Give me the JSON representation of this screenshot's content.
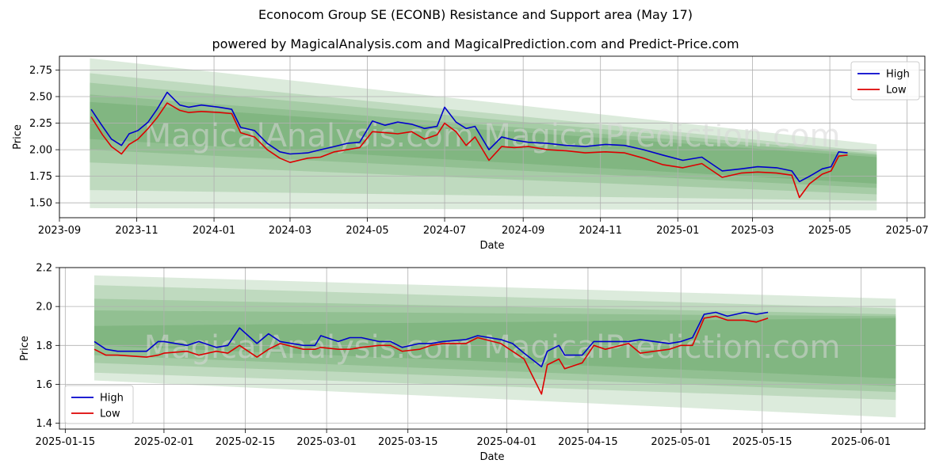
{
  "title": "Econocom Group SE (ECONB) Resistance and Support area (May 17)",
  "subtitle": "powered by MagicalAnalysis.com and MagicalPrediction.com and Predict-Price.com",
  "watermark": "MagicalAnalysis.com   MagicalPrediction.com",
  "colors": {
    "high": "#0000cc",
    "low": "#dd0000",
    "band": "#2e8b2e"
  },
  "chart_data": [
    {
      "type": "line",
      "xlabel": "Date",
      "ylabel": "Price",
      "xlim": [
        "2023-09-01",
        "2025-07-15"
      ],
      "ylim": [
        1.36,
        2.88
      ],
      "x_ticks": [
        "2023-09",
        "2023-11",
        "2024-01",
        "2024-03",
        "2024-05",
        "2024-07",
        "2024-09",
        "2024-11",
        "2025-01",
        "2025-03",
        "2025-05",
        "2025-07"
      ],
      "y_ticks": [
        1.5,
        1.75,
        2.0,
        2.25,
        2.5,
        2.75
      ],
      "grid": true,
      "legend": "top-right",
      "bands": [
        {
          "start": "2023-09-25",
          "end": "2025-06-07",
          "upper": [
            2.86,
            2.05
          ],
          "lower": [
            1.45,
            1.43
          ]
        },
        {
          "start": "2023-09-25",
          "end": "2025-06-07",
          "upper": [
            2.72,
            1.98
          ],
          "lower": [
            1.62,
            1.52
          ]
        },
        {
          "start": "2023-09-25",
          "end": "2025-06-07",
          "upper": [
            2.63,
            1.96
          ],
          "lower": [
            1.88,
            1.58
          ]
        },
        {
          "start": "2023-09-25",
          "end": "2025-06-07",
          "upper": [
            2.52,
            1.95
          ],
          "lower": [
            2.0,
            1.64
          ]
        },
        {
          "start": "2023-09-25",
          "end": "2025-06-07",
          "upper": [
            2.45,
            1.93
          ],
          "lower": [
            2.1,
            1.68
          ]
        }
      ],
      "series": [
        {
          "name": "High",
          "x": [
            "2023-09-26",
            "2023-10-05",
            "2023-10-12",
            "2023-10-20",
            "2023-10-26",
            "2023-11-02",
            "2023-11-10",
            "2023-11-17",
            "2023-11-25",
            "2023-12-05",
            "2023-12-12",
            "2023-12-22",
            "2024-01-05",
            "2024-01-15",
            "2024-01-22",
            "2024-02-02",
            "2024-02-12",
            "2024-02-22",
            "2024-03-01",
            "2024-03-15",
            "2024-03-25",
            "2024-04-05",
            "2024-04-15",
            "2024-04-25",
            "2024-05-05",
            "2024-05-15",
            "2024-05-25",
            "2024-06-05",
            "2024-06-15",
            "2024-06-25",
            "2024-07-01",
            "2024-07-10",
            "2024-07-18",
            "2024-07-25",
            "2024-08-05",
            "2024-08-15",
            "2024-08-25",
            "2024-09-05",
            "2024-09-20",
            "2024-10-05",
            "2024-10-20",
            "2024-11-05",
            "2024-11-20",
            "2024-12-05",
            "2024-12-20",
            "2025-01-05",
            "2025-01-20",
            "2025-02-05",
            "2025-02-20",
            "2025-03-05",
            "2025-03-20",
            "2025-04-01",
            "2025-04-07",
            "2025-04-15",
            "2025-04-25",
            "2025-05-02",
            "2025-05-08",
            "2025-05-15"
          ],
          "values": [
            2.38,
            2.22,
            2.1,
            2.04,
            2.15,
            2.18,
            2.26,
            2.38,
            2.54,
            2.42,
            2.4,
            2.42,
            2.4,
            2.38,
            2.21,
            2.18,
            2.06,
            1.98,
            1.96,
            1.97,
            2.0,
            2.03,
            2.06,
            2.07,
            2.27,
            2.23,
            2.26,
            2.24,
            2.2,
            2.22,
            2.4,
            2.26,
            2.2,
            2.22,
            2.0,
            2.12,
            2.09,
            2.07,
            2.06,
            2.04,
            2.03,
            2.05,
            2.04,
            2.0,
            1.95,
            1.9,
            1.93,
            1.8,
            1.82,
            1.84,
            1.83,
            1.8,
            1.7,
            1.75,
            1.82,
            1.84,
            1.98,
            1.97
          ]
        },
        {
          "name": "Low",
          "x": [
            "2023-09-26",
            "2023-10-05",
            "2023-10-12",
            "2023-10-20",
            "2023-10-26",
            "2023-11-02",
            "2023-11-10",
            "2023-11-17",
            "2023-11-25",
            "2023-12-05",
            "2023-12-12",
            "2023-12-22",
            "2024-01-05",
            "2024-01-15",
            "2024-01-22",
            "2024-02-02",
            "2024-02-12",
            "2024-02-22",
            "2024-03-01",
            "2024-03-15",
            "2024-03-25",
            "2024-04-05",
            "2024-04-15",
            "2024-04-25",
            "2024-05-05",
            "2024-05-15",
            "2024-05-25",
            "2024-06-05",
            "2024-06-15",
            "2024-06-25",
            "2024-07-01",
            "2024-07-10",
            "2024-07-18",
            "2024-07-25",
            "2024-08-05",
            "2024-08-15",
            "2024-08-25",
            "2024-09-05",
            "2024-09-20",
            "2024-10-05",
            "2024-10-20",
            "2024-11-05",
            "2024-11-20",
            "2024-12-05",
            "2024-12-20",
            "2025-01-05",
            "2025-01-20",
            "2025-02-05",
            "2025-02-20",
            "2025-03-05",
            "2025-03-20",
            "2025-04-01",
            "2025-04-07",
            "2025-04-15",
            "2025-04-25",
            "2025-05-02",
            "2025-05-08",
            "2025-05-15"
          ],
          "values": [
            2.31,
            2.14,
            2.03,
            1.96,
            2.05,
            2.1,
            2.2,
            2.3,
            2.44,
            2.37,
            2.35,
            2.36,
            2.35,
            2.34,
            2.16,
            2.12,
            2.0,
            1.92,
            1.88,
            1.92,
            1.93,
            1.98,
            2.0,
            2.02,
            2.17,
            2.16,
            2.15,
            2.17,
            2.1,
            2.14,
            2.25,
            2.17,
            2.04,
            2.12,
            1.9,
            2.03,
            2.02,
            2.03,
            2.0,
            1.99,
            1.97,
            1.98,
            1.97,
            1.92,
            1.86,
            1.83,
            1.87,
            1.74,
            1.78,
            1.79,
            1.78,
            1.76,
            1.55,
            1.68,
            1.77,
            1.8,
            1.94,
            1.95
          ]
        }
      ]
    },
    {
      "type": "line",
      "xlabel": "Date",
      "ylabel": "Price",
      "xlim": [
        "2025-01-14",
        "2025-06-12"
      ],
      "ylim": [
        1.37,
        2.2
      ],
      "x_ticks": [
        "2025-01-15",
        "2025-02-01",
        "2025-02-15",
        "2025-03-01",
        "2025-03-15",
        "2025-04-01",
        "2025-04-15",
        "2025-05-01",
        "2025-05-15",
        "2025-06-01"
      ],
      "y_ticks": [
        1.4,
        1.6,
        1.8,
        2.0,
        2.2
      ],
      "grid": true,
      "legend": "bottom-left",
      "bands": [
        {
          "start": "2025-01-20",
          "end": "2025-06-07",
          "upper": [
            2.16,
            2.04
          ],
          "lower": [
            1.62,
            1.43
          ]
        },
        {
          "start": "2025-01-20",
          "end": "2025-06-07",
          "upper": [
            2.11,
            1.99
          ],
          "lower": [
            1.66,
            1.52
          ]
        },
        {
          "start": "2025-01-20",
          "end": "2025-06-07",
          "upper": [
            2.04,
            1.96
          ],
          "lower": [
            1.71,
            1.56
          ]
        },
        {
          "start": "2025-01-20",
          "end": "2025-06-07",
          "upper": [
            1.98,
            1.95
          ],
          "lower": [
            1.75,
            1.59
          ]
        },
        {
          "start": "2025-01-20",
          "end": "2025-06-07",
          "upper": [
            1.9,
            1.94
          ],
          "lower": [
            1.8,
            1.63
          ]
        }
      ],
      "series": [
        {
          "name": "High",
          "x": [
            "2025-01-20",
            "2025-01-22",
            "2025-01-24",
            "2025-01-29",
            "2025-01-31",
            "2025-02-01",
            "2025-02-05",
            "2025-02-07",
            "2025-02-10",
            "2025-02-12",
            "2025-02-14",
            "2025-02-17",
            "2025-02-19",
            "2025-02-21",
            "2025-02-25",
            "2025-02-27",
            "2025-02-28",
            "2025-03-03",
            "2025-03-05",
            "2025-03-07",
            "2025-03-10",
            "2025-03-12",
            "2025-03-14",
            "2025-03-17",
            "2025-03-19",
            "2025-03-21",
            "2025-03-25",
            "2025-03-27",
            "2025-03-31",
            "2025-04-02",
            "2025-04-04",
            "2025-04-07",
            "2025-04-08",
            "2025-04-10",
            "2025-04-11",
            "2025-04-14",
            "2025-04-16",
            "2025-04-18",
            "2025-04-22",
            "2025-04-24",
            "2025-04-29",
            "2025-05-01",
            "2025-05-03",
            "2025-05-05",
            "2025-05-07",
            "2025-05-09",
            "2025-05-12",
            "2025-05-14",
            "2025-05-16"
          ],
          "values": [
            1.82,
            1.78,
            1.77,
            1.77,
            1.82,
            1.82,
            1.8,
            1.82,
            1.79,
            1.8,
            1.89,
            1.81,
            1.86,
            1.82,
            1.8,
            1.8,
            1.85,
            1.82,
            1.84,
            1.84,
            1.82,
            1.82,
            1.79,
            1.81,
            1.81,
            1.82,
            1.83,
            1.85,
            1.83,
            1.81,
            1.76,
            1.69,
            1.77,
            1.8,
            1.75,
            1.75,
            1.82,
            1.82,
            1.82,
            1.83,
            1.81,
            1.82,
            1.84,
            1.96,
            1.97,
            1.95,
            1.97,
            1.96,
            1.97
          ]
        },
        {
          "name": "Low",
          "x": [
            "2025-01-20",
            "2025-01-22",
            "2025-01-24",
            "2025-01-29",
            "2025-01-31",
            "2025-02-01",
            "2025-02-05",
            "2025-02-07",
            "2025-02-10",
            "2025-02-12",
            "2025-02-14",
            "2025-02-17",
            "2025-02-19",
            "2025-02-21",
            "2025-02-25",
            "2025-02-27",
            "2025-02-28",
            "2025-03-03",
            "2025-03-05",
            "2025-03-07",
            "2025-03-10",
            "2025-03-12",
            "2025-03-14",
            "2025-03-17",
            "2025-03-19",
            "2025-03-21",
            "2025-03-25",
            "2025-03-27",
            "2025-03-31",
            "2025-04-02",
            "2025-04-04",
            "2025-04-07",
            "2025-04-08",
            "2025-04-10",
            "2025-04-11",
            "2025-04-14",
            "2025-04-16",
            "2025-04-18",
            "2025-04-22",
            "2025-04-24",
            "2025-04-29",
            "2025-05-01",
            "2025-05-03",
            "2025-05-05",
            "2025-05-07",
            "2025-05-09",
            "2025-05-12",
            "2025-05-14",
            "2025-05-16"
          ],
          "values": [
            1.78,
            1.75,
            1.75,
            1.74,
            1.75,
            1.76,
            1.77,
            1.75,
            1.77,
            1.76,
            1.8,
            1.74,
            1.78,
            1.81,
            1.78,
            1.78,
            1.79,
            1.78,
            1.78,
            1.79,
            1.8,
            1.8,
            1.77,
            1.78,
            1.8,
            1.81,
            1.81,
            1.84,
            1.81,
            1.77,
            1.73,
            1.55,
            1.7,
            1.73,
            1.68,
            1.71,
            1.8,
            1.78,
            1.81,
            1.76,
            1.78,
            1.8,
            1.8,
            1.94,
            1.95,
            1.93,
            1.93,
            1.92,
            1.94
          ]
        }
      ]
    }
  ]
}
